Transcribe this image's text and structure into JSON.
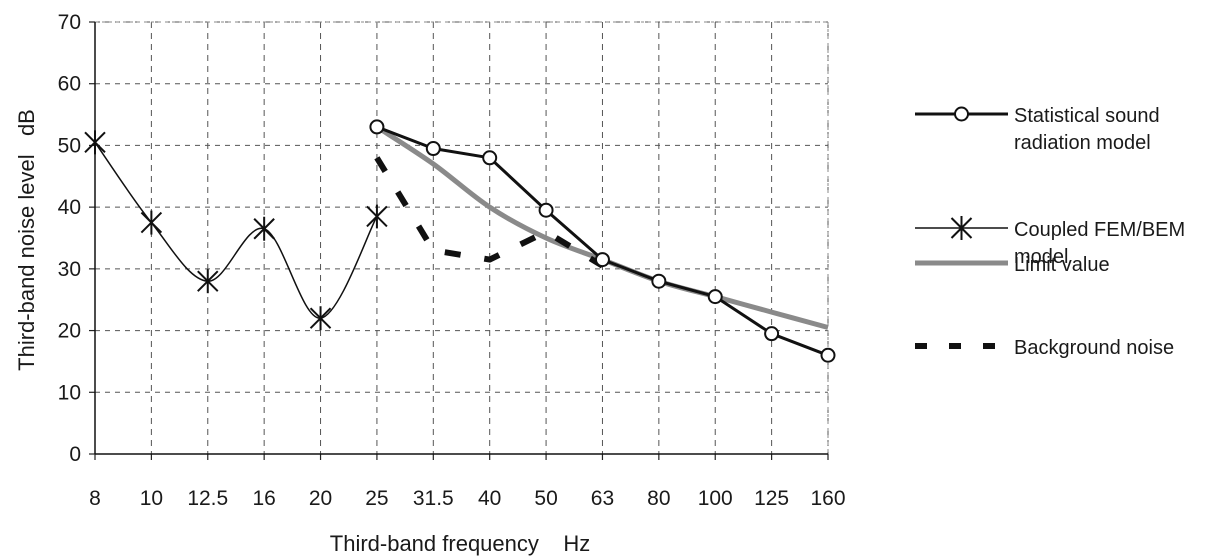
{
  "chart_data": {
    "type": "line",
    "xlabel": "Third-band frequency    Hz",
    "ylabel": "Third-band noise level   dB",
    "categories": [
      "8",
      "10",
      "12.5",
      "16",
      "20",
      "25",
      "31.5",
      "40",
      "50",
      "63",
      "80",
      "100",
      "125",
      "160"
    ],
    "ylim": [
      0,
      70
    ],
    "yticks": [
      0,
      10,
      20,
      30,
      40,
      50,
      60,
      70
    ],
    "grid": true,
    "legend_position": "right",
    "series": [
      {
        "name": "Statistical sound radiation model",
        "legend_lines": [
          "Statistical sound",
          "radiation model"
        ],
        "marker": "circle",
        "color": "#111111",
        "values": [
          null,
          null,
          null,
          null,
          null,
          53,
          49.5,
          48,
          39.5,
          31.5,
          28,
          25.5,
          19.5,
          16
        ]
      },
      {
        "name": "Coupled FEM/BEM model",
        "legend_lines": [
          "Coupled FEM/BEM",
          "model"
        ],
        "marker": "asterisk",
        "color": "#111111",
        "values": [
          50.5,
          37.5,
          28,
          36.5,
          22,
          38.5,
          null,
          null,
          null,
          null,
          null,
          null,
          null,
          null
        ]
      },
      {
        "name": "Limit value",
        "legend_lines": [
          "Limit value"
        ],
        "marker": "none",
        "color": "#8a8a8a",
        "values": [
          null,
          null,
          null,
          null,
          null,
          53,
          47,
          40,
          35,
          31.5,
          28,
          25.5,
          23,
          20.5
        ]
      },
      {
        "name": "Background noise",
        "legend_lines": [
          "Background noise"
        ],
        "marker": "none",
        "color": "#111111",
        "values": [
          null,
          null,
          null,
          null,
          null,
          48,
          33,
          31.5,
          36,
          30.5,
          null,
          null,
          null,
          null
        ]
      }
    ]
  }
}
